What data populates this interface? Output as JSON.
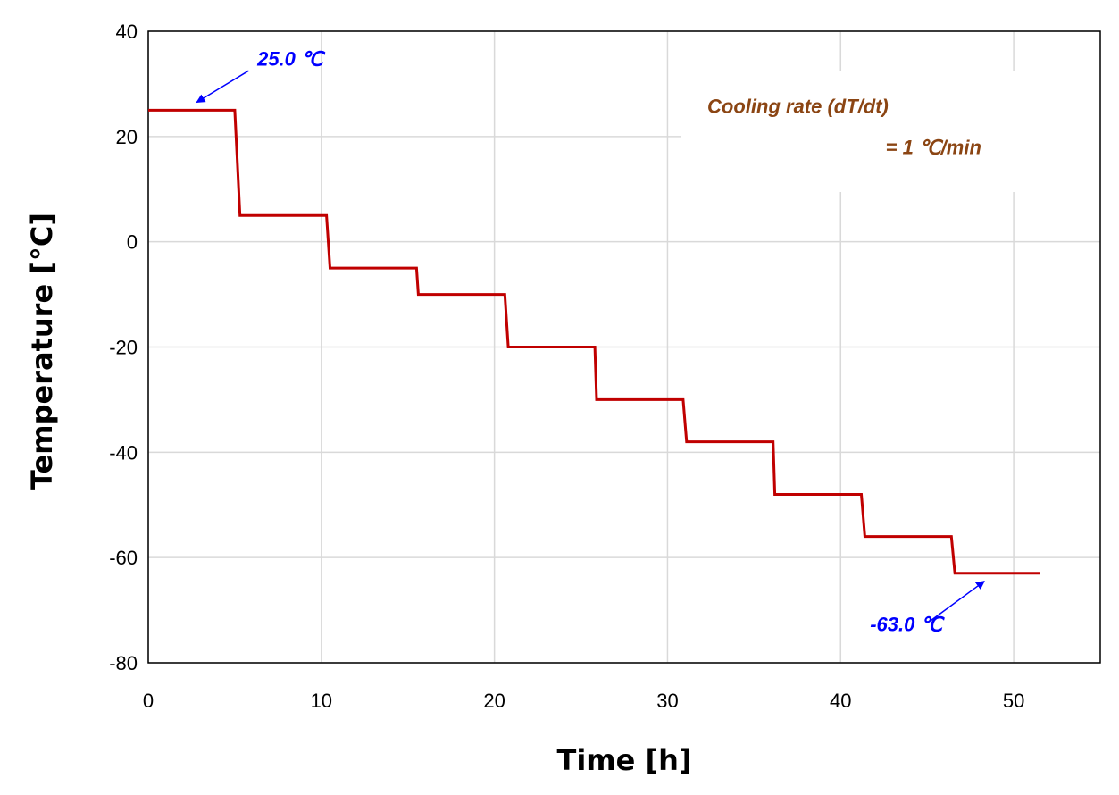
{
  "chart_data": {
    "type": "line",
    "title": "",
    "xlabel": "Time [h]",
    "ylabel": "Temperature [°C]",
    "xlim": [
      0,
      55
    ],
    "ylim": [
      -80,
      40
    ],
    "xticks": [
      0,
      10,
      20,
      30,
      40,
      50
    ],
    "yticks": [
      -80,
      -60,
      -40,
      -20,
      0,
      20,
      40
    ],
    "grid": true,
    "series": [
      {
        "color": "#c00000",
        "x": [
          0,
          5.0,
          5.3,
          10.3,
          10.5,
          15.5,
          15.6,
          20.6,
          20.8,
          25.8,
          25.9,
          30.9,
          31.1,
          36.1,
          36.2,
          41.2,
          41.4,
          46.4,
          46.6,
          51.5
        ],
        "y": [
          25,
          25,
          5,
          5,
          -5,
          -5,
          -10,
          -10,
          -20,
          -20,
          -30,
          -30,
          -38,
          -38,
          -48,
          -48,
          -56,
          -56,
          -63,
          -63
        ]
      }
    ],
    "annotations": [
      {
        "text": "25.0 ℃",
        "color": "#0000ff",
        "x_text": 6.3,
        "y_text": 33.5,
        "arrow_from": [
          5.8,
          32.5
        ],
        "arrow_to": [
          2.8,
          26.5
        ]
      },
      {
        "text": "-63.0 ℃",
        "color": "#0000ff",
        "x_text": 41.7,
        "y_text": -74,
        "arrow_from": [
          45.2,
          -72
        ],
        "arrow_to": [
          48.3,
          -64.5
        ]
      },
      {
        "text": "Cooling rate (dT/dt)",
        "color": "#8b4513",
        "x_text": 32.3,
        "y_text": 24.5
      },
      {
        "text": "= 1 ℃/min",
        "color": "#8b4513",
        "x_text": 42.6,
        "y_text": 16.7
      }
    ]
  }
}
